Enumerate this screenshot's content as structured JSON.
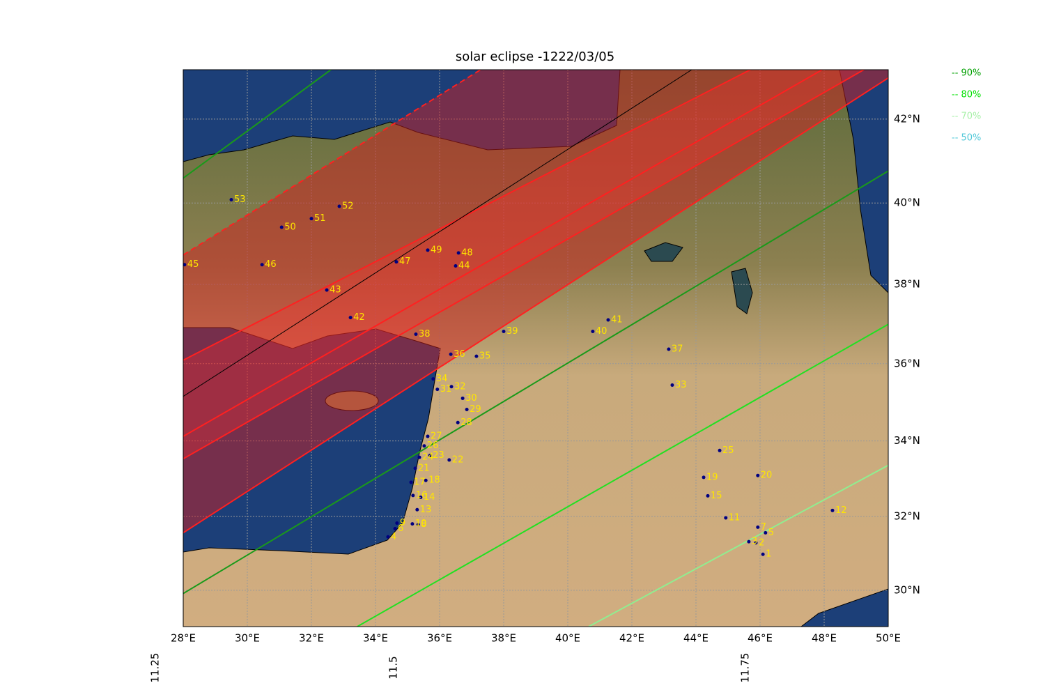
{
  "chart_data": {
    "type": "map",
    "title": "solar eclipse -1222/03/05",
    "projection": "mercator",
    "xlim": [
      28,
      50
    ],
    "ylim": [
      29,
      43.15
    ],
    "grid": true,
    "xticks": [
      {
        "value": 28,
        "label": "28°E"
      },
      {
        "value": 30,
        "label": "30°E"
      },
      {
        "value": 32,
        "label": "32°E"
      },
      {
        "value": 34,
        "label": "34°E"
      },
      {
        "value": 36,
        "label": "36°E"
      },
      {
        "value": 38,
        "label": "38°E"
      },
      {
        "value": 40,
        "label": "40°E"
      },
      {
        "value": 42,
        "label": "42°E"
      },
      {
        "value": 44,
        "label": "44°E"
      },
      {
        "value": 46,
        "label": "46°E"
      },
      {
        "value": 48,
        "label": "48°E"
      },
      {
        "value": 50,
        "label": "50°E"
      }
    ],
    "yticks": [
      {
        "value": 30,
        "label": "30°N"
      },
      {
        "value": 32,
        "label": "32°N"
      },
      {
        "value": 34,
        "label": "34°N"
      },
      {
        "value": 36,
        "label": "36°N"
      },
      {
        "value": 38,
        "label": "38°N"
      },
      {
        "value": 40,
        "label": "40°N"
      },
      {
        "value": 42,
        "label": "42°N"
      }
    ],
    "lines": [
      {
        "color": "#ff2020",
        "style": "dashed",
        "lon": [
          28,
          37.28
        ],
        "lat": [
          38.73,
          43.15
        ]
      },
      {
        "color": "#ff2020",
        "style": "solid",
        "lon": [
          28,
          45.7
        ],
        "lat": [
          36.09,
          43.15
        ]
      },
      {
        "color": "#000000",
        "style": "solid",
        "lon": [
          28,
          43.87
        ],
        "lat": [
          35.16,
          43.15
        ]
      },
      {
        "color": "#ff2020",
        "style": "solid",
        "lon": [
          28,
          47.94
        ],
        "lat": [
          34.12,
          43.15
        ]
      },
      {
        "color": "#ff2020",
        "style": "solid",
        "lon": [
          28,
          49.24
        ],
        "lat": [
          33.53,
          43.15
        ]
      },
      {
        "color": "#ff2020",
        "style": "solid",
        "lon": [
          28,
          50
        ],
        "lat": [
          31.56,
          42.96
        ]
      },
      {
        "color": "#1a9a1a",
        "style": "solid",
        "lon": [
          28,
          32.61
        ],
        "lat": [
          40.6,
          43.15
        ]
      },
      {
        "color": "#1a9a1a",
        "style": "solid",
        "lon": [
          28,
          50
        ],
        "lat": [
          29.91,
          40.77
        ]
      },
      {
        "color": "#22e022",
        "style": "solid",
        "lon": [
          33.43,
          50
        ],
        "lat": [
          29,
          37
        ]
      },
      {
        "color": "#90ee90",
        "style": "solid",
        "lon": [
          40.65,
          50
        ],
        "lat": [
          29,
          33.36
        ]
      }
    ],
    "points": {
      "color": "#000080",
      "label_color": "#ffe600",
      "labels": [
        "1",
        "2",
        "3",
        "4",
        "5",
        "6",
        "7",
        "8",
        "9",
        "10",
        "11",
        "12",
        "13",
        "14",
        "15",
        "16",
        "17",
        "18",
        "19",
        "20",
        "21",
        "22",
        "23",
        "24",
        "25",
        "26",
        "27",
        "28",
        "29",
        "30",
        "31",
        "32",
        "33",
        "34",
        "35",
        "36",
        "37",
        "38",
        "39",
        "40",
        "41",
        "42",
        "43",
        "44",
        "45",
        "46",
        "47",
        "48",
        "49",
        "50",
        "51",
        "52",
        "53"
      ],
      "lon": [
        46.09,
        45.87,
        45.65,
        34.39,
        46.17,
        34.61,
        45.93,
        35.33,
        34.67,
        35.15,
        44.93,
        48.26,
        35.3,
        35.41,
        44.37,
        35.17,
        35.11,
        35.57,
        44.24,
        45.93,
        35.24,
        36.3,
        35.7,
        35.37,
        44.74,
        35.52,
        35.63,
        36.57,
        36.85,
        36.72,
        35.93,
        36.37,
        43.26,
        35.8,
        37.15,
        36.35,
        43.15,
        35.26,
        38.0,
        40.78,
        41.26,
        33.22,
        32.48,
        36.5,
        28.04,
        30.46,
        34.65,
        36.59,
        35.63,
        31.07,
        32.0,
        32.87,
        29.5
      ],
      "lat": [
        30.98,
        31.29,
        31.32,
        31.45,
        31.56,
        31.67,
        31.71,
        31.78,
        31.82,
        31.8,
        31.96,
        32.16,
        32.18,
        32.51,
        32.55,
        32.56,
        32.91,
        32.96,
        33.04,
        33.09,
        33.28,
        33.5,
        33.62,
        33.57,
        33.75,
        33.87,
        34.12,
        34.48,
        34.82,
        35.11,
        35.34,
        35.41,
        35.45,
        35.61,
        36.19,
        36.24,
        36.37,
        36.75,
        36.82,
        36.82,
        37.11,
        37.17,
        37.86,
        38.46,
        38.49,
        38.49,
        38.56,
        38.78,
        38.85,
        39.41,
        39.62,
        39.92,
        40.08
      ]
    },
    "legend": [
      {
        "name": "-- 90%",
        "color": "#00a000"
      },
      {
        "name": "-- 80%",
        "color": "#00e000"
      },
      {
        "name": "-- 70%",
        "color": "#a8f0a8"
      },
      {
        "name": "-- 50%",
        "color": "#50c8d8"
      }
    ],
    "bottom_labels": [
      "11.25",
      "11.5",
      "11.75"
    ]
  }
}
